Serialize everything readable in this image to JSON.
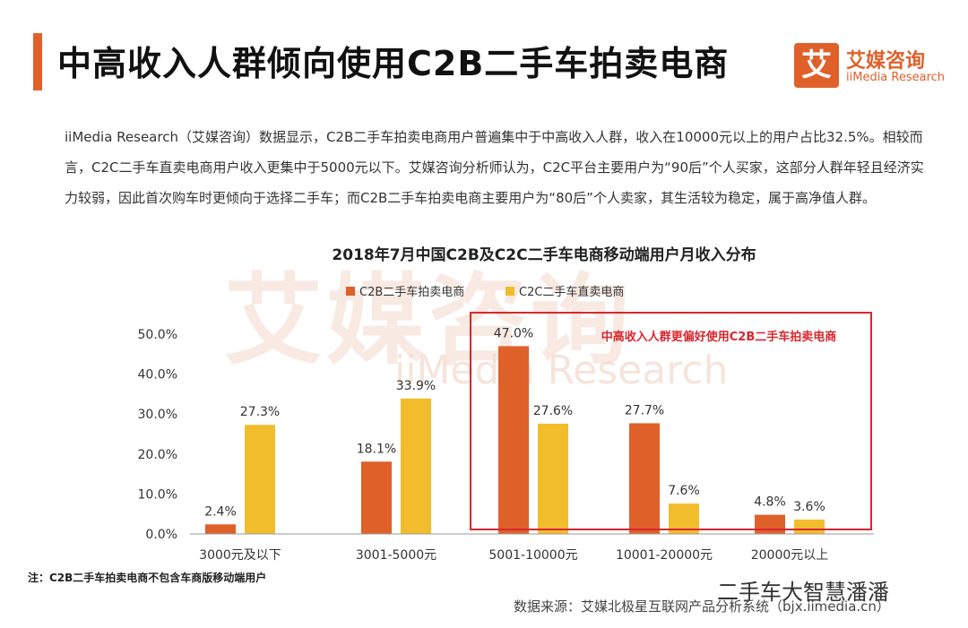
{
  "page": {
    "title": "中高收入人群倾向使用C2B二手车拍卖电商",
    "logo": {
      "cn": "艾媒咨询",
      "en": "iiMedia Research",
      "mark": "艾"
    },
    "paragraph": "iiMedia Research（艾媒咨询）数据显示，C2B二手车拍卖电商用户普遍集中于中高收入人群，收入在10000元以上的用户占比32.5%。相较而言，C2C二手车直卖电商用户收入更集中于5000元以下。艾媒咨询分析师认为，C2C平台主要用户为“90后”个人买家，这部分人群年轻且经济实力较弱，因此首次购车时更倾向于选择二手车；而C2B二手车拍卖电商主要用户为“80后”个人卖家，其生活较为稳定，属于高净值人群。",
    "watermark": {
      "cn": "艾媒咨询",
      "en": "iiMedia Research"
    },
    "footnote": "注：C2B二手车拍卖电商不包含车商版移动端用户",
    "wechat": "二手车大智慧潘潘",
    "source": "数据来源：艾媒北极星互联网产品分析系统（bjx.iimedia.cn）"
  },
  "chart_data": {
    "type": "bar",
    "title": "2018年7月中国C2B及C2C二手车电商移动端用户月收入分布",
    "categories": [
      "3000元及以下",
      "3001-5000元",
      "5001-10000元",
      "10001-20000元",
      "20000元以上"
    ],
    "series": [
      {
        "name": "C2B二手车拍卖电商",
        "color": "#e0602a",
        "values": [
          2.4,
          18.1,
          47.0,
          27.7,
          4.8
        ]
      },
      {
        "name": "C2C二手车直卖电商",
        "color": "#f2bd2c",
        "values": [
          27.3,
          33.9,
          27.6,
          7.6,
          3.6
        ]
      }
    ],
    "ylim": [
      0,
      50
    ],
    "yticks": [
      "0.0%",
      "10.0%",
      "20.0%",
      "30.0%",
      "40.0%",
      "50.0%"
    ],
    "data_labels": [
      [
        "2.4%",
        "18.1%",
        "47.0%",
        "27.7%",
        "4.8%"
      ],
      [
        "27.3%",
        "33.9%",
        "27.6%",
        "7.6%",
        "3.6%"
      ]
    ],
    "annotation": {
      "text": "中高收入人群更偏好使用C2B二手车拍卖电商",
      "color": "#d9262e"
    },
    "legend_placement": "top-center",
    "grid": false
  }
}
